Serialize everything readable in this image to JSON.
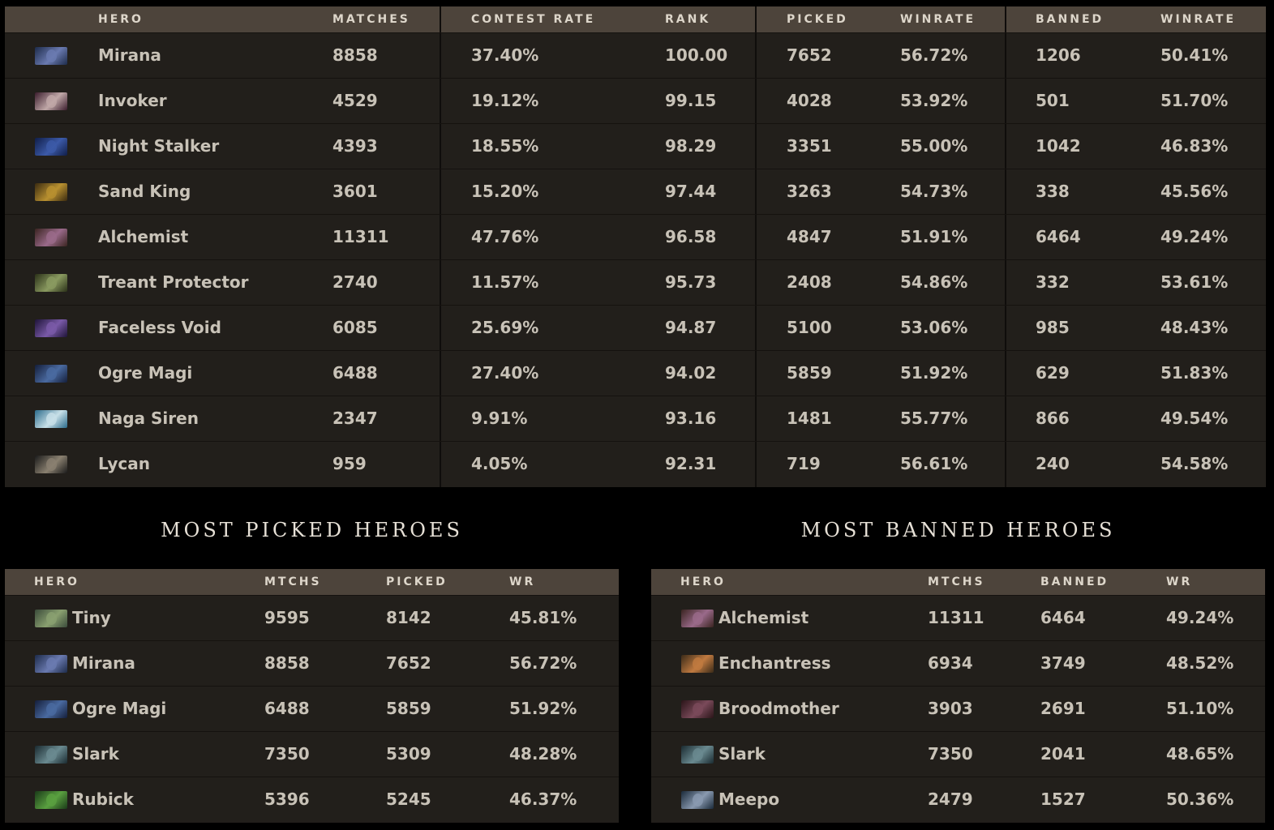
{
  "top_table": {
    "headers": {
      "hero": "HERO",
      "matches": "MATCHES",
      "contest_rate": "CONTEST RATE",
      "rank": "RANK",
      "picked": "PICKED",
      "picked_winrate": "WINRATE",
      "banned": "BANNED",
      "banned_winrate": "WINRATE"
    },
    "rows": [
      {
        "hero": "Mirana",
        "icon": "mirana-portrait-icon",
        "colors": [
          "#1d2b4a",
          "#6a7ab0"
        ],
        "matches": "8858",
        "contest_rate": "37.40%",
        "rank": "100.00",
        "picked": "7652",
        "picked_winrate": "56.72%",
        "banned": "1206",
        "banned_winrate": "50.41%"
      },
      {
        "hero": "Invoker",
        "icon": "invoker-portrait-icon",
        "colors": [
          "#3a1c2c",
          "#c0a8a8"
        ],
        "matches": "4529",
        "contest_rate": "19.12%",
        "rank": "99.15",
        "picked": "4028",
        "picked_winrate": "53.92%",
        "banned": "501",
        "banned_winrate": "51.70%"
      },
      {
        "hero": "Night Stalker",
        "icon": "night-stalker-portrait-icon",
        "colors": [
          "#101e48",
          "#3c5aa8"
        ],
        "matches": "4393",
        "contest_rate": "18.55%",
        "rank": "98.29",
        "picked": "3351",
        "picked_winrate": "55.00%",
        "banned": "1042",
        "banned_winrate": "46.83%"
      },
      {
        "hero": "Sand King",
        "icon": "sand-king-portrait-icon",
        "colors": [
          "#3a2a10",
          "#b89030"
        ],
        "matches": "3601",
        "contest_rate": "15.20%",
        "rank": "97.44",
        "picked": "3263",
        "picked_winrate": "54.73%",
        "banned": "338",
        "banned_winrate": "45.56%"
      },
      {
        "hero": "Alchemist",
        "icon": "alchemist-portrait-icon",
        "colors": [
          "#3a2420",
          "#9a6a8a"
        ],
        "matches": "11311",
        "contest_rate": "47.76%",
        "rank": "96.58",
        "picked": "4847",
        "picked_winrate": "51.91%",
        "banned": "6464",
        "banned_winrate": "49.24%"
      },
      {
        "hero": "Treant Protector",
        "icon": "treant-protector-portrait-icon",
        "colors": [
          "#2a3018",
          "#8a9a60"
        ],
        "matches": "2740",
        "contest_rate": "11.57%",
        "rank": "95.73",
        "picked": "2408",
        "picked_winrate": "54.86%",
        "banned": "332",
        "banned_winrate": "53.61%"
      },
      {
        "hero": "Faceless Void",
        "icon": "faceless-void-portrait-icon",
        "colors": [
          "#1e1438",
          "#7a5aa8"
        ],
        "matches": "6085",
        "contest_rate": "25.69%",
        "rank": "94.87",
        "picked": "5100",
        "picked_winrate": "53.06%",
        "banned": "985",
        "banned_winrate": "48.43%"
      },
      {
        "hero": "Ogre Magi",
        "icon": "ogre-magi-portrait-icon",
        "colors": [
          "#141e3a",
          "#4a6aa0"
        ],
        "matches": "6488",
        "contest_rate": "27.40%",
        "rank": "94.02",
        "picked": "5859",
        "picked_winrate": "51.92%",
        "banned": "629",
        "banned_winrate": "51.83%"
      },
      {
        "hero": "Naga Siren",
        "icon": "naga-siren-portrait-icon",
        "colors": [
          "#2a6a8a",
          "#c8e0e8"
        ],
        "matches": "2347",
        "contest_rate": "9.91%",
        "rank": "93.16",
        "picked": "1481",
        "picked_winrate": "55.77%",
        "banned": "866",
        "banned_winrate": "49.54%"
      },
      {
        "hero": "Lycan",
        "icon": "lycan-portrait-icon",
        "colors": [
          "#1a1a1a",
          "#8a8070"
        ],
        "matches": "959",
        "contest_rate": "4.05%",
        "rank": "92.31",
        "picked": "719",
        "picked_winrate": "56.61%",
        "banned": "240",
        "banned_winrate": "54.58%"
      }
    ]
  },
  "most_picked": {
    "title": "MOST PICKED HEROES",
    "headers": {
      "hero": "HERO",
      "matches": "MTCHS",
      "count": "PICKED",
      "wr": "WR"
    },
    "rows": [
      {
        "hero": "Tiny",
        "icon": "tiny-portrait-icon",
        "colors": [
          "#3a4a3a",
          "#8aa070"
        ],
        "matches": "9595",
        "count": "8142",
        "wr": "45.81%"
      },
      {
        "hero": "Mirana",
        "icon": "mirana-portrait-icon",
        "colors": [
          "#1d2b4a",
          "#6a7ab0"
        ],
        "matches": "8858",
        "count": "7652",
        "wr": "56.72%"
      },
      {
        "hero": "Ogre Magi",
        "icon": "ogre-magi-portrait-icon",
        "colors": [
          "#141e3a",
          "#4a6aa0"
        ],
        "matches": "6488",
        "count": "5859",
        "wr": "51.92%"
      },
      {
        "hero": "Slark",
        "icon": "slark-portrait-icon",
        "colors": [
          "#1a2a30",
          "#6a8a90"
        ],
        "matches": "7350",
        "count": "5309",
        "wr": "48.28%"
      },
      {
        "hero": "Rubick",
        "icon": "rubick-portrait-icon",
        "colors": [
          "#1a3a18",
          "#5aa040"
        ],
        "matches": "5396",
        "count": "5245",
        "wr": "46.37%"
      }
    ]
  },
  "most_banned": {
    "title": "MOST BANNED HEROES",
    "headers": {
      "hero": "HERO",
      "matches": "MTCHS",
      "count": "BANNED",
      "wr": "WR"
    },
    "rows": [
      {
        "hero": "Alchemist",
        "icon": "alchemist-portrait-icon",
        "colors": [
          "#3a2420",
          "#9a6a8a"
        ],
        "matches": "11311",
        "count": "6464",
        "wr": "49.24%"
      },
      {
        "hero": "Enchantress",
        "icon": "enchantress-portrait-icon",
        "colors": [
          "#3a2a18",
          "#c07a40"
        ],
        "matches": "6934",
        "count": "3749",
        "wr": "48.52%"
      },
      {
        "hero": "Broodmother",
        "icon": "broodmother-portrait-icon",
        "colors": [
          "#2a1418",
          "#7a4a5a"
        ],
        "matches": "3903",
        "count": "2691",
        "wr": "51.10%"
      },
      {
        "hero": "Slark",
        "icon": "slark-portrait-icon",
        "colors": [
          "#1a2a30",
          "#6a8a90"
        ],
        "matches": "7350",
        "count": "2041",
        "wr": "48.65%"
      },
      {
        "hero": "Meepo",
        "icon": "meepo-portrait-icon",
        "colors": [
          "#1a2a3a",
          "#8a9ab0"
        ],
        "matches": "2479",
        "count": "1527",
        "wr": "50.36%"
      }
    ]
  }
}
